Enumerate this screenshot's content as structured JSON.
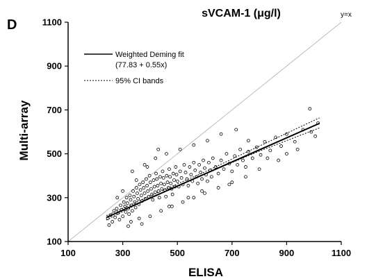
{
  "panel_label": "D",
  "chart_data": {
    "type": "scatter",
    "title": "sVCAM-1 (μg/l)",
    "xlabel": "ELISA",
    "ylabel": "Multi-array",
    "xlim": [
      100,
      1100
    ],
    "ylim": [
      100,
      1100
    ],
    "xticks": [
      100,
      300,
      500,
      700,
      900,
      1100
    ],
    "yticks": [
      100,
      300,
      500,
      700,
      900,
      1100
    ],
    "grid": false,
    "legend_position": "upper-left",
    "identity_line": {
      "label": "y=x",
      "color": "#bdbdbd"
    },
    "fit": {
      "name": "Weighted Deming fit",
      "equation": "(77.83 + 0.55x)",
      "intercept": 77.83,
      "slope": 0.55,
      "x_range": [
        240,
        1020
      ]
    },
    "ci_bands": {
      "name": "95% CI bands",
      "lower": [
        [
          240,
          198
        ],
        [
          400,
          300
        ],
        [
          600,
          408
        ],
        [
          800,
          512
        ],
        [
          1020,
          618
        ]
      ],
      "upper": [
        [
          240,
          218
        ],
        [
          400,
          308
        ],
        [
          600,
          417
        ],
        [
          800,
          535
        ],
        [
          1020,
          664
        ]
      ]
    },
    "points": [
      [
        245,
        205
      ],
      [
        255,
        220
      ],
      [
        262,
        190
      ],
      [
        268,
        240
      ],
      [
        272,
        210
      ],
      [
        278,
        250
      ],
      [
        283,
        230
      ],
      [
        288,
        200
      ],
      [
        292,
        265
      ],
      [
        296,
        245
      ],
      [
        300,
        215
      ],
      [
        304,
        280
      ],
      [
        308,
        260
      ],
      [
        311,
        235
      ],
      [
        314,
        300
      ],
      [
        317,
        275
      ],
      [
        320,
        250
      ],
      [
        323,
        225
      ],
      [
        326,
        310
      ],
      [
        329,
        290
      ],
      [
        332,
        265
      ],
      [
        335,
        240
      ],
      [
        338,
        330
      ],
      [
        341,
        305
      ],
      [
        344,
        280
      ],
      [
        347,
        255
      ],
      [
        350,
        345
      ],
      [
        353,
        320
      ],
      [
        356,
        295
      ],
      [
        359,
        270
      ],
      [
        362,
        360
      ],
      [
        365,
        335
      ],
      [
        368,
        310
      ],
      [
        371,
        285
      ],
      [
        374,
        370
      ],
      [
        377,
        345
      ],
      [
        380,
        320
      ],
      [
        383,
        295
      ],
      [
        386,
        385
      ],
      [
        389,
        355
      ],
      [
        392,
        330
      ],
      [
        395,
        305
      ],
      [
        398,
        400
      ],
      [
        401,
        370
      ],
      [
        404,
        340
      ],
      [
        407,
        315
      ],
      [
        410,
        290
      ],
      [
        413,
        380
      ],
      [
        416,
        350
      ],
      [
        419,
        325
      ],
      [
        422,
        410
      ],
      [
        425,
        385
      ],
      [
        428,
        355
      ],
      [
        431,
        330
      ],
      [
        434,
        300
      ],
      [
        437,
        395
      ],
      [
        440,
        365
      ],
      [
        443,
        340
      ],
      [
        446,
        420
      ],
      [
        449,
        390
      ],
      [
        452,
        360
      ],
      [
        455,
        335
      ],
      [
        458,
        305
      ],
      [
        461,
        400
      ],
      [
        464,
        370
      ],
      [
        467,
        345
      ],
      [
        470,
        430
      ],
      [
        473,
        395
      ],
      [
        476,
        365
      ],
      [
        479,
        340
      ],
      [
        482,
        315
      ],
      [
        485,
        410
      ],
      [
        488,
        380
      ],
      [
        491,
        350
      ],
      [
        494,
        440
      ],
      [
        497,
        405
      ],
      [
        500,
        375
      ],
      [
        505,
        350
      ],
      [
        510,
        420
      ],
      [
        515,
        390
      ],
      [
        520,
        360
      ],
      [
        525,
        450
      ],
      [
        530,
        415
      ],
      [
        535,
        385
      ],
      [
        540,
        355
      ],
      [
        545,
        440
      ],
      [
        550,
        405
      ],
      [
        555,
        375
      ],
      [
        560,
        460
      ],
      [
        565,
        425
      ],
      [
        570,
        395
      ],
      [
        575,
        365
      ],
      [
        580,
        450
      ],
      [
        585,
        415
      ],
      [
        590,
        385
      ],
      [
        595,
        470
      ],
      [
        600,
        435
      ],
      [
        605,
        405
      ],
      [
        610,
        375
      ],
      [
        615,
        460
      ],
      [
        620,
        425
      ],
      [
        625,
        395
      ],
      [
        630,
        480
      ],
      [
        640,
        440
      ],
      [
        650,
        410
      ],
      [
        660,
        470
      ],
      [
        670,
        430
      ],
      [
        680,
        500
      ],
      [
        690,
        455
      ],
      [
        700,
        420
      ],
      [
        710,
        490
      ],
      [
        720,
        450
      ],
      [
        730,
        520
      ],
      [
        740,
        470
      ],
      [
        750,
        440
      ],
      [
        760,
        510
      ],
      [
        775,
        480
      ],
      [
        790,
        530
      ],
      [
        805,
        495
      ],
      [
        820,
        555
      ],
      [
        840,
        515
      ],
      [
        860,
        575
      ],
      [
        880,
        535
      ],
      [
        900,
        590
      ],
      [
        930,
        555
      ],
      [
        960,
        610
      ],
      [
        990,
        600
      ],
      [
        1015,
        640
      ],
      [
        335,
        420
      ],
      [
        380,
        450
      ],
      [
        420,
        480
      ],
      [
        460,
        500
      ],
      [
        510,
        520
      ],
      [
        560,
        540
      ],
      [
        610,
        560
      ],
      [
        660,
        590
      ],
      [
        715,
        610
      ],
      [
        330,
        190
      ],
      [
        360,
        205
      ],
      [
        400,
        215
      ],
      [
        440,
        240
      ],
      [
        480,
        260
      ],
      [
        520,
        280
      ],
      [
        560,
        300
      ],
      [
        600,
        320
      ],
      [
        650,
        345
      ],
      [
        700,
        370
      ],
      [
        750,
        395
      ],
      [
        800,
        430
      ],
      [
        870,
        470
      ],
      [
        940,
        520
      ],
      [
        985,
        705
      ],
      [
        300,
        330
      ],
      [
        350,
        380
      ],
      [
        390,
        440
      ],
      [
        280,
        300
      ],
      [
        320,
        170
      ],
      [
        370,
        180
      ],
      [
        250,
        175
      ],
      [
        430,
        520
      ],
      [
        470,
        260
      ],
      [
        540,
        300
      ],
      [
        590,
        330
      ],
      [
        690,
        360
      ],
      [
        760,
        560
      ],
      [
        830,
        480
      ],
      [
        900,
        500
      ],
      [
        1005,
        580
      ]
    ]
  }
}
